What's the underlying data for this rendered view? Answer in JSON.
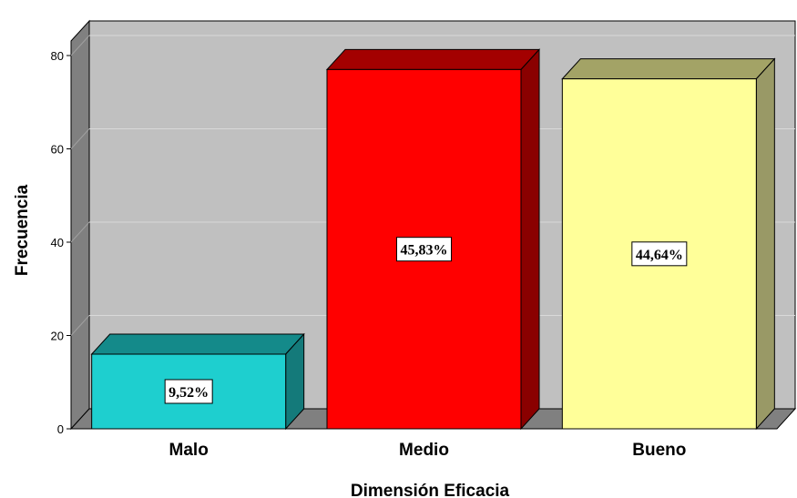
{
  "chart_data": {
    "type": "bar",
    "title": "",
    "xlabel": "Dimensión Eficacia",
    "ylabel": "Frecuencia",
    "categories": [
      "Malo",
      "Medio",
      "Bueno"
    ],
    "values": [
      16,
      77,
      75
    ],
    "data_labels": [
      "9,52%",
      "45,83%",
      "44,64%"
    ],
    "ylim": [
      0,
      80
    ],
    "yticks": [
      0,
      20,
      40,
      60,
      80
    ],
    "ytick_labels": [
      "0",
      "20",
      "40",
      "60",
      "80"
    ],
    "grid": true,
    "style": "3d",
    "colors": {
      "bars": [
        "#1ecfcf",
        "#ff0000",
        "#ffff99"
      ],
      "bar_tops": [
        "#148a8a",
        "#a30000",
        "#a3a366"
      ],
      "bar_sides": [
        "#147a7a",
        "#8a0000",
        "#999966"
      ],
      "wall": "#c0c0c0",
      "side_wall": "#808080",
      "floor": "#808080"
    }
  }
}
